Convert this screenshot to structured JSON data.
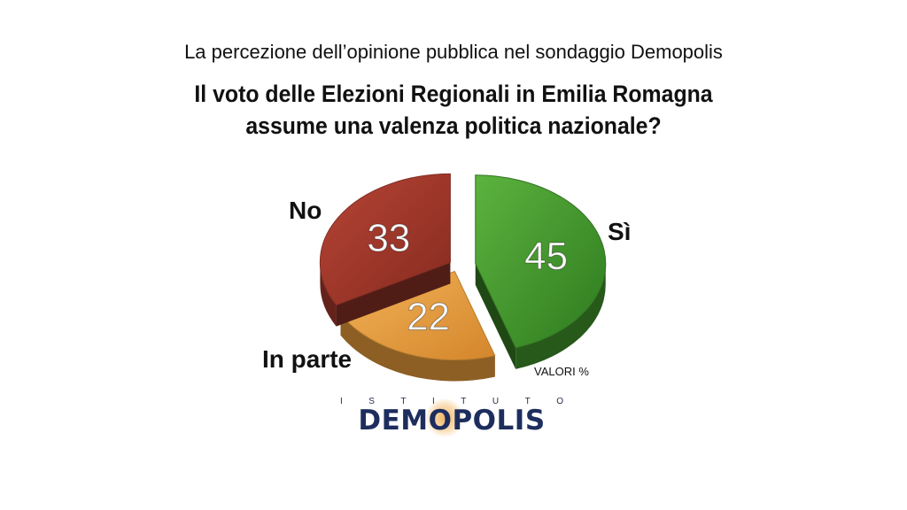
{
  "header": {
    "subtitle": "La percezione dell’opinione pubblica nel sondaggio Demopolis",
    "title_line1": "Il voto delle Elezioni Regionali in Emilia Romagna",
    "title_line2": "assume una valenza politica nazionale?"
  },
  "chart_data": {
    "type": "pie",
    "categories": [
      "Sì",
      "In parte",
      "No"
    ],
    "values": [
      45,
      22,
      33
    ],
    "colors": [
      "#3e8f2a",
      "#e39a3a",
      "#a0392c"
    ],
    "style": "3d-exploded",
    "note": "VALORI %"
  },
  "logo": {
    "top_letters": [
      "I",
      "S",
      "T",
      "I",
      "T",
      "U",
      "T",
      "O"
    ],
    "name": "DEMOPOLIS"
  }
}
